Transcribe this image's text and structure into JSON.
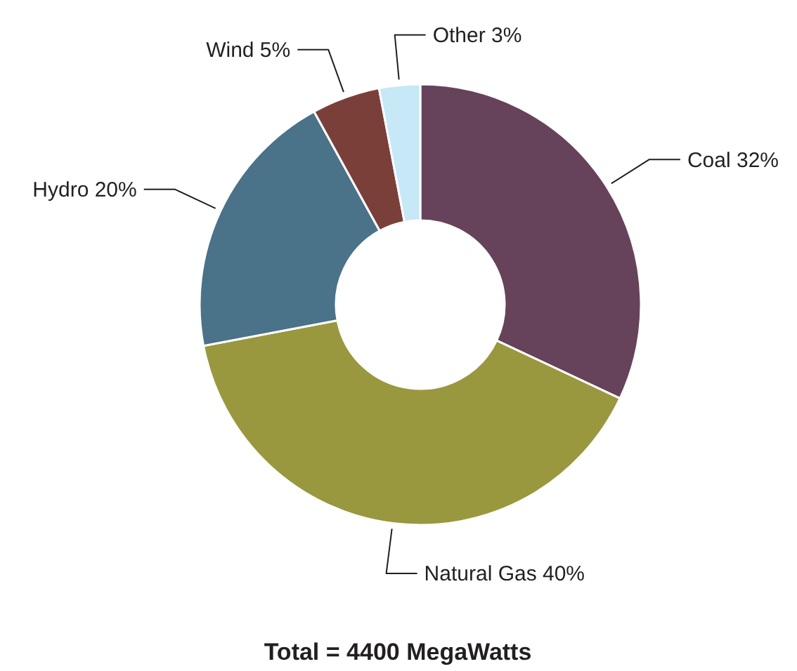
{
  "chart_data": {
    "type": "donut",
    "categories": [
      "Coal",
      "Natural Gas",
      "Hydro",
      "Wind",
      "Other"
    ],
    "values": [
      32,
      40,
      20,
      5,
      3
    ],
    "colors": [
      "#66435a",
      "#99983f",
      "#4a7289",
      "#7b3f3a",
      "#c6e8f7"
    ],
    "value_labels": [
      "32%",
      "40%",
      "20%",
      "5%",
      "3%"
    ],
    "annotations": [
      "Total = 4400 MegaWatts"
    ]
  }
}
